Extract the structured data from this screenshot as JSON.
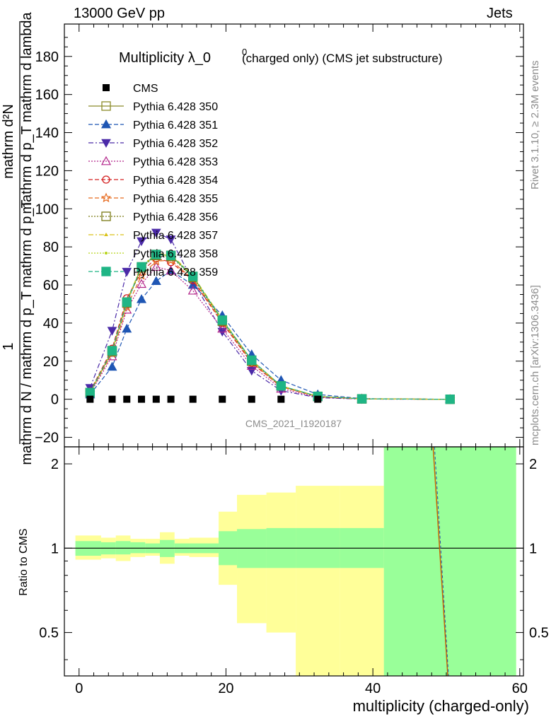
{
  "header": {
    "energy_label": "13000 GeV pp",
    "category_label": "Jets"
  },
  "side_labels": {
    "rivet": "Rivet 3.1.10, ≥ 2.3M events",
    "mcplots": "mcplots.cern.ch [arXiv:1306.3436]"
  },
  "chart_data": {
    "type": "line",
    "title": "Multiplicity λ_0",
    "title_superscript": "0",
    "title_suffix": "(charged only) (CMS jet substructure)",
    "analysis_tag": "CMS_2021_I1920187",
    "xlabel": "multiplicity (charged-only)",
    "ylabel_numerator": "mathrm d²N",
    "ylabel_top": "mathrm d p_T mathrm d lambda",
    "ylabel_one": "1",
    "ylabel_bottom": "mathrm d N / mathrm d p_T mathrm d p_T",
    "ratio_ylabel": "Ratio to CMS",
    "xlim": [
      -2,
      60.5
    ],
    "ylim": [
      -25,
      197
    ],
    "ratio_ylim": [
      0.35,
      2.3
    ],
    "x_ticks": [
      "0",
      "20",
      "40",
      "60"
    ],
    "y_ticks": [
      "−20",
      "0",
      "20",
      "40",
      "60",
      "80",
      "100",
      "120",
      "140",
      "160",
      "180"
    ],
    "ratio_ticks": [
      "0.5",
      "1",
      "2"
    ],
    "x": [
      1.5,
      4.5,
      6.5,
      8.5,
      10.5,
      12.5,
      15.5,
      19.5,
      23.5,
      27.5,
      32.5,
      38.5,
      50.5
    ],
    "data": {
      "name": "CMS",
      "color": "#000000",
      "values": [
        0,
        0,
        0,
        0,
        0,
        0,
        0,
        0,
        0,
        0,
        0,
        0,
        0
      ]
    },
    "series": [
      {
        "name": "Pythia 6.428 350",
        "color": "#8b8b2a",
        "marker": "square-open",
        "dash": "solid",
        "values": [
          3.5,
          25.5,
          51.0,
          69.5,
          76.0,
          75.5,
          64.5,
          41.5,
          20.5,
          7.0,
          1.5,
          0.2,
          0.0
        ]
      },
      {
        "name": "Pythia 6.428 351",
        "color": "#1f56b4",
        "marker": "triangle-up",
        "dash": "dashed",
        "values": [
          2.5,
          17.0,
          37.0,
          52.5,
          62.0,
          67.5,
          60.0,
          44.0,
          23.5,
          10.0,
          2.5,
          0.3,
          0.0
        ]
      },
      {
        "name": "Pythia 6.428 352",
        "color": "#4b2aa8",
        "marker": "triangle-down",
        "dash": "dashdot",
        "values": [
          6.0,
          36.0,
          67.0,
          83.0,
          87.5,
          84.0,
          62.0,
          35.5,
          15.0,
          4.5,
          0.8,
          0.1,
          0.0
        ]
      },
      {
        "name": "Pythia 6.428 353",
        "color": "#b2248a",
        "marker": "triangle-up-open",
        "dash": "dotted",
        "values": [
          3.0,
          22.5,
          47.0,
          60.5,
          69.5,
          67.5,
          57.0,
          37.0,
          17.5,
          5.5,
          1.0,
          0.1,
          0.0
        ]
      },
      {
        "name": "Pythia 6.428 354",
        "color": "#d42020",
        "marker": "circle-open",
        "dash": "dashed",
        "values": [
          4.0,
          26.5,
          53.0,
          67.0,
          74.0,
          72.0,
          62.5,
          40.0,
          19.0,
          6.5,
          1.3,
          0.2,
          0.0
        ]
      },
      {
        "name": "Pythia 6.428 355",
        "color": "#e66a1f",
        "marker": "star-open",
        "dash": "dashed",
        "values": [
          3.5,
          24.0,
          48.5,
          65.0,
          72.5,
          73.0,
          63.0,
          40.5,
          19.5,
          6.5,
          1.4,
          0.2,
          0.0
        ]
      },
      {
        "name": "Pythia 6.428 356",
        "color": "#7a7a14",
        "marker": "square-open",
        "dash": "dotted",
        "values": [
          3.5,
          25.0,
          50.5,
          69.0,
          75.5,
          75.0,
          64.0,
          41.0,
          20.0,
          7.0,
          1.5,
          0.2,
          0.0
        ]
      },
      {
        "name": "Pythia 6.428 357",
        "color": "#d9c21a",
        "marker": "tri-small",
        "dash": "dashdot",
        "values": [
          3.5,
          25.5,
          51.5,
          70.0,
          76.5,
          76.0,
          65.0,
          42.0,
          20.5,
          7.0,
          1.5,
          0.2,
          0.0
        ]
      },
      {
        "name": "Pythia 6.428 358",
        "color": "#b8d41a",
        "marker": "dot",
        "dash": "dotted",
        "values": [
          3.5,
          25.5,
          51.0,
          69.5,
          76.0,
          75.5,
          64.5,
          41.5,
          20.5,
          7.0,
          1.5,
          0.2,
          0.0
        ]
      },
      {
        "name": "Pythia 6.428 359",
        "color": "#1fb585",
        "marker": "square",
        "dash": "dashed",
        "values": [
          3.5,
          25.5,
          51.0,
          69.5,
          76.0,
          75.5,
          64.5,
          41.5,
          20.5,
          7.0,
          1.5,
          0.2,
          0.0
        ]
      }
    ],
    "uncertainty_bands": {
      "edges": [
        -0.5,
        3.0,
        5.0,
        7.0,
        9.0,
        11.0,
        13.0,
        15.0,
        19.0,
        21.5,
        25.5,
        29.5,
        35.5,
        41.5,
        59.5
      ],
      "stat": {
        "color": "#99ff99",
        "low": [
          0.94,
          0.95,
          0.95,
          0.96,
          0.96,
          0.93,
          0.96,
          0.96,
          0.87,
          0.85,
          0.85,
          0.85,
          0.85,
          0.35
        ],
        "high": [
          1.06,
          1.05,
          1.06,
          1.05,
          1.04,
          1.07,
          1.04,
          1.04,
          1.15,
          1.17,
          1.18,
          1.18,
          1.18,
          2.3
        ]
      },
      "total": {
        "color": "#ffff99",
        "low": [
          0.91,
          0.92,
          0.9,
          0.93,
          0.94,
          0.88,
          0.94,
          0.93,
          0.74,
          0.54,
          0.5,
          0.35,
          0.35,
          0.35
        ],
        "high": [
          1.11,
          1.09,
          1.11,
          1.08,
          1.08,
          1.14,
          1.08,
          1.09,
          1.35,
          1.55,
          1.58,
          1.67,
          1.67,
          2.3
        ]
      }
    },
    "ratio_curve": {
      "color": "#c86400",
      "x": [
        48.2,
        50.2
      ],
      "y": [
        2.3,
        0.35
      ]
    },
    "legend_position": "top-left"
  }
}
